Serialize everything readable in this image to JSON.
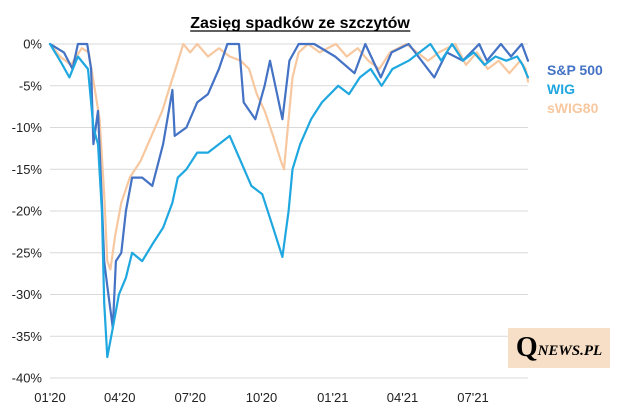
{
  "chart_data": {
    "type": "line",
    "title": "Zasięg spadków ze szczytów",
    "xlabel": "",
    "ylabel": "",
    "x_ticks": [
      "01'20",
      "04'20",
      "07'20",
      "10'20",
      "01'21",
      "04'21",
      "07'21"
    ],
    "x_range": [
      "2020-01-02",
      "2021-09-10"
    ],
    "y_ticks": [
      0,
      -5,
      -10,
      -15,
      -20,
      -25,
      -30,
      -35,
      -40
    ],
    "y_tick_labels": [
      "0%",
      "-5%",
      "-10%",
      "-15%",
      "-20%",
      "-25%",
      "-30%",
      "-35%",
      "-40%"
    ],
    "ylim": [
      -40,
      0
    ],
    "grid": "horizontal",
    "legend_position": "right",
    "series": [
      {
        "name": "sWIG80",
        "color": "#f7c8a0",
        "points": [
          [
            "2020-01-02",
            0
          ],
          [
            "2020-01-15",
            -1.5
          ],
          [
            "2020-01-29",
            -2.5
          ],
          [
            "2020-02-12",
            -0.5
          ],
          [
            "2020-02-21",
            -1
          ],
          [
            "2020-02-28",
            -5
          ],
          [
            "2020-03-06",
            -9
          ],
          [
            "2020-03-12",
            -18
          ],
          [
            "2020-03-16",
            -26
          ],
          [
            "2020-03-20",
            -27
          ],
          [
            "2020-03-26",
            -23
          ],
          [
            "2020-04-03",
            -19
          ],
          [
            "2020-04-14",
            -16
          ],
          [
            "2020-04-28",
            -14
          ],
          [
            "2020-05-12",
            -11
          ],
          [
            "2020-05-26",
            -8
          ],
          [
            "2020-06-05",
            -5
          ],
          [
            "2020-06-12",
            -3
          ],
          [
            "2020-06-22",
            0
          ],
          [
            "2020-07-01",
            -1
          ],
          [
            "2020-07-10",
            0
          ],
          [
            "2020-07-24",
            -1.5
          ],
          [
            "2020-08-07",
            -0.5
          ],
          [
            "2020-08-21",
            -1.5
          ],
          [
            "2020-09-04",
            -2
          ],
          [
            "2020-09-15",
            -3
          ],
          [
            "2020-09-25",
            -6
          ],
          [
            "2020-10-05",
            -8
          ],
          [
            "2020-10-16",
            -11
          ],
          [
            "2020-10-26",
            -14
          ],
          [
            "2020-10-30",
            -15
          ],
          [
            "2020-11-05",
            -9
          ],
          [
            "2020-11-10",
            -4
          ],
          [
            "2020-11-18",
            -1
          ],
          [
            "2020-11-30",
            0
          ],
          [
            "2020-12-15",
            -1
          ],
          [
            "2021-01-05",
            0
          ],
          [
            "2021-01-19",
            -1.5
          ],
          [
            "2021-02-02",
            -0.5
          ],
          [
            "2021-02-16",
            -2
          ],
          [
            "2021-03-02",
            -3
          ],
          [
            "2021-03-16",
            -1
          ],
          [
            "2021-04-06",
            0
          ],
          [
            "2021-04-20",
            -1
          ],
          [
            "2021-05-04",
            -2
          ],
          [
            "2021-05-18",
            -1
          ],
          [
            "2021-06-08",
            0
          ],
          [
            "2021-06-22",
            -2.5
          ],
          [
            "2021-07-06",
            -1
          ],
          [
            "2021-07-20",
            -3
          ],
          [
            "2021-08-03",
            -2
          ],
          [
            "2021-08-17",
            -3.5
          ],
          [
            "2021-08-31",
            -2
          ],
          [
            "2021-09-07",
            -3
          ],
          [
            "2021-09-10",
            -4.5
          ]
        ]
      },
      {
        "name": "S&P 500",
        "color": "#4472c4",
        "points": [
          [
            "2020-01-02",
            0
          ],
          [
            "2020-01-20",
            -1
          ],
          [
            "2020-01-31",
            -3
          ],
          [
            "2020-02-07",
            0
          ],
          [
            "2020-02-19",
            0
          ],
          [
            "2020-02-24",
            -3
          ],
          [
            "2020-02-27",
            -12
          ],
          [
            "2020-03-04",
            -8
          ],
          [
            "2020-03-09",
            -19
          ],
          [
            "2020-03-12",
            -26
          ],
          [
            "2020-03-16",
            -29
          ],
          [
            "2020-03-23",
            -34
          ],
          [
            "2020-03-27",
            -26
          ],
          [
            "2020-04-03",
            -25
          ],
          [
            "2020-04-09",
            -20
          ],
          [
            "2020-04-17",
            -16
          ],
          [
            "2020-04-30",
            -16
          ],
          [
            "2020-05-13",
            -17
          ],
          [
            "2020-05-27",
            -12
          ],
          [
            "2020-06-08",
            -5.5
          ],
          [
            "2020-06-11",
            -11
          ],
          [
            "2020-06-26",
            -10
          ],
          [
            "2020-07-10",
            -7
          ],
          [
            "2020-07-24",
            -6
          ],
          [
            "2020-08-07",
            -3
          ],
          [
            "2020-08-18",
            0
          ],
          [
            "2020-09-02",
            0
          ],
          [
            "2020-09-08",
            -7
          ],
          [
            "2020-09-23",
            -9
          ],
          [
            "2020-10-05",
            -5
          ],
          [
            "2020-10-12",
            -2
          ],
          [
            "2020-10-28",
            -9
          ],
          [
            "2020-11-06",
            -2
          ],
          [
            "2020-11-18",
            0
          ],
          [
            "2020-12-08",
            0
          ],
          [
            "2021-01-04",
            -1.5
          ],
          [
            "2021-01-29",
            -3.5
          ],
          [
            "2021-02-12",
            0
          ],
          [
            "2021-03-04",
            -4
          ],
          [
            "2021-03-18",
            -1
          ],
          [
            "2021-04-09",
            0
          ],
          [
            "2021-05-12",
            -4
          ],
          [
            "2021-05-28",
            -1
          ],
          [
            "2021-06-18",
            -2
          ],
          [
            "2021-07-09",
            0
          ],
          [
            "2021-07-19",
            -2
          ],
          [
            "2021-08-06",
            0
          ],
          [
            "2021-08-19",
            -1.5
          ],
          [
            "2021-09-02",
            0
          ],
          [
            "2021-09-10",
            -2
          ]
        ]
      },
      {
        "name": "WIG",
        "color": "#1fa7e0",
        "points": [
          [
            "2020-01-02",
            0
          ],
          [
            "2020-01-15",
            -2
          ],
          [
            "2020-01-27",
            -4
          ],
          [
            "2020-02-07",
            -1.5
          ],
          [
            "2020-02-20",
            -3
          ],
          [
            "2020-02-27",
            -10
          ],
          [
            "2020-03-04",
            -12
          ],
          [
            "2020-03-09",
            -20
          ],
          [
            "2020-03-12",
            -31
          ],
          [
            "2020-03-16",
            -37.5
          ],
          [
            "2020-03-23",
            -34
          ],
          [
            "2020-03-31",
            -30
          ],
          [
            "2020-04-09",
            -28
          ],
          [
            "2020-04-17",
            -25
          ],
          [
            "2020-04-30",
            -26
          ],
          [
            "2020-05-13",
            -24
          ],
          [
            "2020-05-27",
            -22
          ],
          [
            "2020-06-08",
            -19
          ],
          [
            "2020-06-15",
            -16
          ],
          [
            "2020-06-26",
            -15
          ],
          [
            "2020-07-10",
            -13
          ],
          [
            "2020-07-24",
            -13
          ],
          [
            "2020-08-07",
            -12
          ],
          [
            "2020-08-21",
            -11
          ],
          [
            "2020-09-04",
            -14
          ],
          [
            "2020-09-18",
            -17
          ],
          [
            "2020-10-02",
            -18
          ],
          [
            "2020-10-16",
            -22
          ],
          [
            "2020-10-28",
            -25.5
          ],
          [
            "2020-11-05",
            -20
          ],
          [
            "2020-11-10",
            -15
          ],
          [
            "2020-11-20",
            -12
          ],
          [
            "2020-12-04",
            -9
          ],
          [
            "2020-12-18",
            -7
          ],
          [
            "2021-01-08",
            -5
          ],
          [
            "2021-01-22",
            -6
          ],
          [
            "2021-02-05",
            -4
          ],
          [
            "2021-02-19",
            -3
          ],
          [
            "2021-03-05",
            -5
          ],
          [
            "2021-03-19",
            -3
          ],
          [
            "2021-04-09",
            -2
          ],
          [
            "2021-04-23",
            -1
          ],
          [
            "2021-05-07",
            0
          ],
          [
            "2021-05-21",
            -2
          ],
          [
            "2021-06-04",
            0
          ],
          [
            "2021-06-18",
            -2
          ],
          [
            "2021-07-02",
            -1
          ],
          [
            "2021-07-16",
            -2.5
          ],
          [
            "2021-07-30",
            -1.5
          ],
          [
            "2021-08-13",
            -2
          ],
          [
            "2021-08-27",
            -1.5
          ],
          [
            "2021-09-03",
            -2.5
          ],
          [
            "2021-09-10",
            -4
          ]
        ]
      }
    ],
    "watermark": "QNEWS.PL"
  }
}
